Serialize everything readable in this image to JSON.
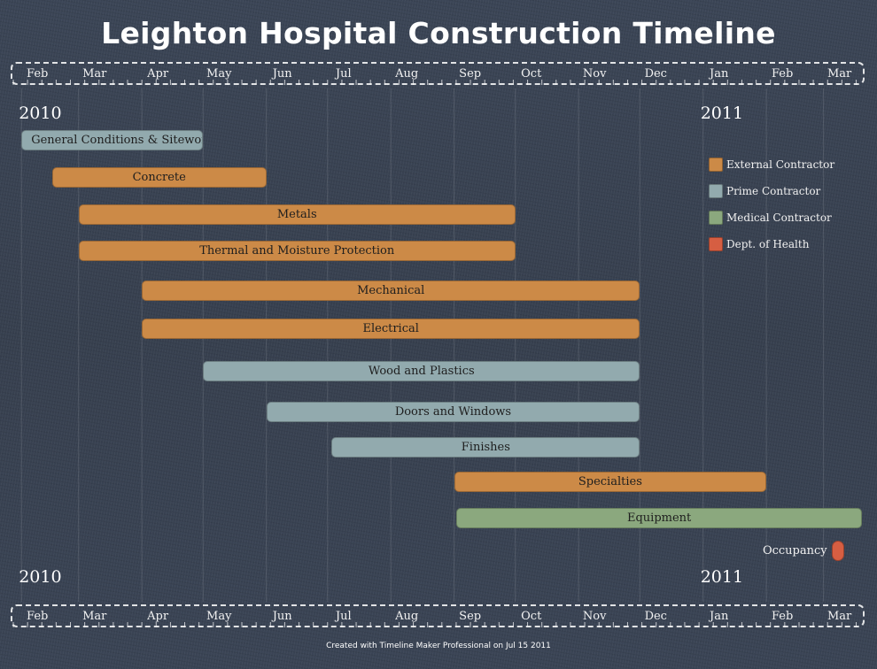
{
  "chart_data": {
    "type": "gantt",
    "title": "Leighton Hospital Construction Timeline",
    "axis": {
      "months": [
        "Feb",
        "Mar",
        "Apr",
        "May",
        "Jun",
        "Jul",
        "Aug",
        "Sep",
        "Oct",
        "Nov",
        "Dec",
        "Jan",
        "Feb",
        "Mar"
      ],
      "month_starts": [
        "2010-02-01",
        "2010-03-01",
        "2010-04-01",
        "2010-05-01",
        "2010-06-01",
        "2010-07-01",
        "2010-08-01",
        "2010-09-01",
        "2010-10-01",
        "2010-11-01",
        "2010-12-01",
        "2011-01-01",
        "2011-02-01",
        "2011-03-01"
      ],
      "years": [
        {
          "label": "2010",
          "date": "2010-02-01"
        },
        {
          "label": "2011",
          "date": "2011-01-01"
        }
      ],
      "range": [
        "2010-01-28",
        "2011-03-22"
      ]
    },
    "categories": {
      "external": {
        "name": "External Contractor",
        "color": "#cc8a47"
      },
      "prime": {
        "name": "Prime Contractor",
        "color": "#92aaae"
      },
      "medical": {
        "name": "Medical Contractor",
        "color": "#8ba87e"
      },
      "health": {
        "name": "Dept. of Health",
        "color": "#d65e42"
      }
    },
    "tasks": [
      {
        "label": "General Conditions & Sitework",
        "start": "2010-02-01",
        "end": "2010-05-01",
        "category": "prime"
      },
      {
        "label": "Concrete",
        "start": "2010-02-16",
        "end": "2010-06-01",
        "category": "external"
      },
      {
        "label": "Metals",
        "start": "2010-03-01",
        "end": "2010-10-01",
        "category": "external"
      },
      {
        "label": "Thermal and Moisture Protection",
        "start": "2010-03-01",
        "end": "2010-10-01",
        "category": "external"
      },
      {
        "label": "Mechanical",
        "start": "2010-04-01",
        "end": "2010-12-01",
        "category": "external"
      },
      {
        "label": "Electrical",
        "start": "2010-04-01",
        "end": "2010-12-01",
        "category": "external"
      },
      {
        "label": "Wood and Plastics",
        "start": "2010-05-01",
        "end": "2010-12-01",
        "category": "prime"
      },
      {
        "label": "Doors and Windows",
        "start": "2010-06-01",
        "end": "2010-12-01",
        "category": "prime"
      },
      {
        "label": "Finishes",
        "start": "2010-07-03",
        "end": "2010-12-01",
        "category": "prime"
      },
      {
        "label": "Specialties",
        "start": "2010-09-01",
        "end": "2011-02-01",
        "category": "external"
      },
      {
        "label": "Equipment",
        "start": "2010-09-02",
        "end": "2011-03-20",
        "category": "medical"
      }
    ],
    "milestones": [
      {
        "label": "Occupancy",
        "date": "2011-03-01",
        "category": "health"
      }
    ],
    "legend_position": "right"
  },
  "legend": [
    {
      "label": "External Contractor",
      "color": "#cc8a47"
    },
    {
      "label": "Prime Contractor",
      "color": "#92aaae"
    },
    {
      "label": "Medical Contractor",
      "color": "#8ba87e"
    },
    {
      "label": "Dept. of Health",
      "color": "#d65e42"
    }
  ],
  "footer": "Created with Timeline Maker Professional on Jul 15 2011"
}
